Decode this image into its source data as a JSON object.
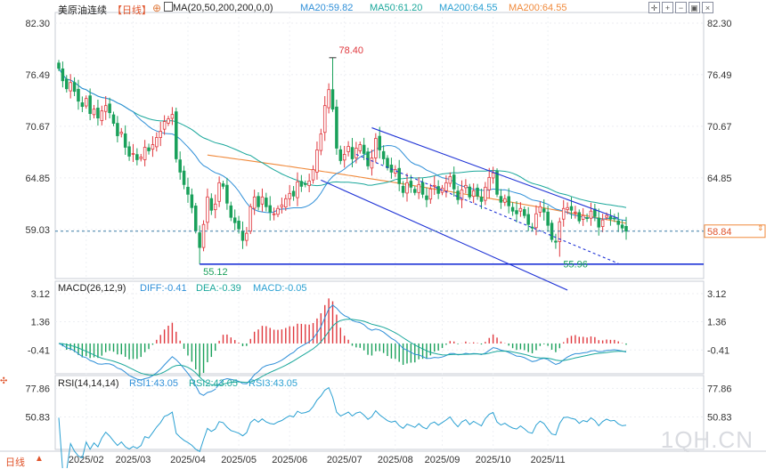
{
  "header": {
    "symbol": "美原油连续",
    "period": "【日线】",
    "ma_params": "MA(20,50,200,200,0,0)",
    "ma_values": [
      {
        "label": "MA20:59.82",
        "color": "#2f8fd8"
      },
      {
        "label": "MA50:61.20",
        "color": "#1aa79b"
      },
      {
        "label": "MA200:64.55",
        "color": "#2aa0d2"
      },
      {
        "label": "MA200:64.55",
        "color": "#f08a3c"
      }
    ],
    "tool_icons": [
      "crosshair-icon",
      "zoom-in-icon",
      "zoom-out-icon",
      "fit-icon",
      "close-icon"
    ]
  },
  "macd_header": {
    "params": "MACD(26,12,9)",
    "diff": "DIFF:-0.41",
    "dea": "DEA:-0.39",
    "macd": "MACD:-0.05"
  },
  "rsi_header": {
    "params": "RSI(14,14,14)",
    "rsi1": "RSI1:43.05",
    "rsi2": "RSI2:43.05",
    "rsi3": "RSI3:43.05"
  },
  "footer": {
    "period_button": "日线",
    "watermark": "1QH.CN"
  },
  "chart_data": {
    "type": "candlestick",
    "instrument": "美原油连续",
    "price_axis": {
      "ticks": [
        82.3,
        76.49,
        70.67,
        64.85,
        59.03
      ],
      "range": [
        53.5,
        83.5
      ]
    },
    "current_price": 58.84,
    "annotations": [
      {
        "text": "78.40",
        "value": 78.4,
        "date_index": 70,
        "kind": "high"
      },
      {
        "text": "55.12",
        "value": 55.12,
        "date_index": 36,
        "kind": "low"
      },
      {
        "text": "55.96",
        "value": 55.96,
        "date_index": 128,
        "kind": "low"
      }
    ],
    "x_ticks": [
      {
        "label": "2025/02",
        "index": 7
      },
      {
        "label": "2025/03",
        "index": 19
      },
      {
        "label": "2025/04",
        "index": 33
      },
      {
        "label": "2025/05",
        "index": 46
      },
      {
        "label": "2025/06",
        "index": 59
      },
      {
        "label": "2025/07",
        "index": 73
      },
      {
        "label": "2025/08",
        "index": 86
      },
      {
        "label": "2025/09",
        "index": 98
      },
      {
        "label": "2025/10",
        "index": 111
      },
      {
        "label": "2025/11",
        "index": 125
      }
    ],
    "support_level": 55.12,
    "trend_channel": {
      "upper": [
        [
          80,
          70.5
        ],
        [
          143,
          60.3
        ]
      ],
      "lower": [
        [
          67,
          64.6
        ],
        [
          130,
          52.2
        ]
      ],
      "mid": [
        [
          76,
          67.5
        ],
        [
          143,
          55.2
        ]
      ]
    },
    "closes": [
      77.2,
      75.8,
      74.9,
      75.6,
      74.6,
      73.5,
      72.9,
      73.8,
      72.1,
      72.6,
      71.6,
      72.4,
      73.0,
      72.2,
      71.0,
      69.6,
      70.0,
      68.3,
      67.3,
      67.6,
      66.9,
      67.2,
      68.3,
      67.9,
      68.6,
      69.4,
      70.1,
      71.2,
      71.5,
      72.0,
      67.0,
      65.5,
      64.1,
      63.0,
      61.5,
      58.9,
      57.0,
      59.6,
      62.7,
      61.2,
      61.9,
      64.3,
      63.9,
      62.0,
      60.4,
      59.8,
      59.1,
      57.8,
      58.6,
      61.6,
      62.7,
      61.6,
      62.7,
      61.6,
      61.0,
      60.8,
      61.4,
      61.8,
      62.5,
      63.1,
      62.8,
      64.4,
      63.9,
      64.1,
      64.5,
      65.8,
      68.0,
      69.8,
      73.0,
      74.8,
      72.6,
      68.2,
      66.8,
      67.5,
      68.4,
      67.0,
      68.2,
      68.6,
      67.6,
      66.2,
      67.1,
      69.3,
      68.0,
      67.0,
      66.0,
      65.5,
      65.8,
      64.2,
      63.2,
      64.3,
      63.8,
      63.2,
      64.1,
      63.0,
      62.4,
      63.6,
      64.0,
      63.1,
      63.7,
      64.3,
      65.0,
      63.6,
      62.4,
      63.5,
      64.0,
      62.7,
      63.4,
      62.8,
      62.2,
      63.8,
      64.9,
      65.4,
      63.0,
      62.1,
      62.5,
      61.7,
      61.1,
      60.8,
      61.4,
      60.6,
      59.6,
      59.3,
      60.8,
      61.6,
      61.0,
      59.5,
      57.9,
      57.6,
      59.9,
      61.4,
      61.5,
      61.2,
      61.0,
      60.0,
      60.6,
      60.3,
      61.1,
      60.5,
      59.3,
      60.1,
      60.6,
      60.2,
      60.3,
      59.6,
      59.2,
      58.84
    ],
    "ma20_current": 59.82,
    "ma50_current": 61.2,
    "ma200_current": 64.55,
    "macd": {
      "axis_ticks": [
        3.12,
        1.36,
        -0.41
      ],
      "range": [
        -1.9,
        3.9
      ],
      "diff": -0.41,
      "dea": -0.39,
      "macd": -0.05
    },
    "rsi": {
      "axis_ticks": [
        77.86,
        50.83
      ],
      "range": [
        20,
        90
      ],
      "rsi1": 43.05,
      "rsi2": 43.05,
      "rsi3": 43.05
    }
  }
}
